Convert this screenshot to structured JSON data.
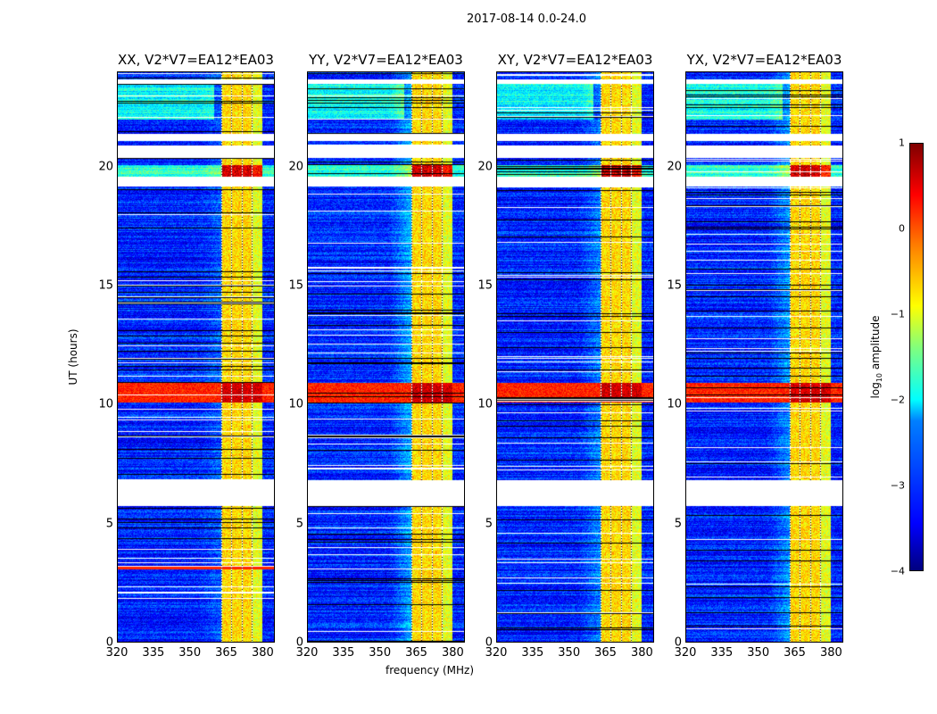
{
  "chart_data": {
    "type": "heatmap",
    "title": "2017-08-14 0.0-24.0",
    "xlabel": "frequency (MHz)",
    "ylabel": "UT (hours)",
    "xlim": [
      320,
      385
    ],
    "ylim": [
      0,
      24
    ],
    "xticks": [
      "320",
      "335",
      "350",
      "365",
      "380"
    ],
    "xtick_values": [
      320,
      335,
      350,
      365,
      380
    ],
    "yticks": [
      "0",
      "5",
      "10",
      "15",
      "20"
    ],
    "ytick_values": [
      0,
      5,
      10,
      15,
      20
    ],
    "panels": [
      {
        "title": "XX, V2*V7=EA12*EA03",
        "ramp": 0.3,
        "redline": 3.1
      },
      {
        "title": "YY, V2*V7=EA12*EA03",
        "ramp": 0.7,
        "redline": null
      },
      {
        "title": "XY, V2*V7=EA12*EA03",
        "ramp": 0.5,
        "redline": null
      },
      {
        "title": "YX, V2*V7=EA12*EA03",
        "ramp": 0.6,
        "redline": null
      }
    ],
    "rfi_band_mhz": [
      363,
      380
    ],
    "strong_rfi_hours": [
      10.1,
      10.9
    ],
    "flagged_hours": [
      [
        5.7,
        6.8
      ],
      [
        19.2,
        19.6
      ],
      [
        21.1,
        21.4
      ],
      [
        20.4,
        20.9
      ],
      [
        23.5,
        23.7
      ]
    ],
    "colorbar": {
      "label": "log10 amplitude",
      "label_main": "log",
      "label_sub": "10",
      "label_rest": " amplitude",
      "ticks": [
        "1",
        "0",
        "−1",
        "−2",
        "−3",
        "−4"
      ],
      "tick_values": [
        1,
        0,
        -1,
        -2,
        -3,
        -4
      ],
      "range": [
        -4,
        1
      ],
      "colormap": "jet"
    }
  }
}
